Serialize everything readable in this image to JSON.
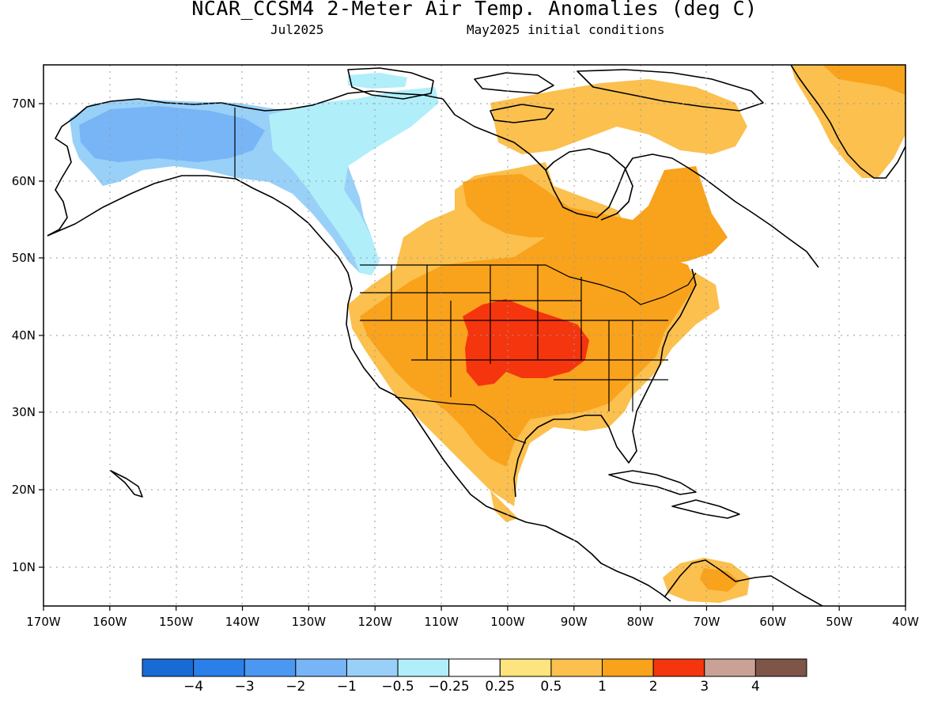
{
  "title": "NCAR_CCSM4 2-Meter Air Temp. Anomalies (deg C)",
  "subtitle_left": "Jul2025",
  "subtitle_right": "May2025 initial conditions",
  "lon_ticks": [
    "170W",
    "160W",
    "150W",
    "140W",
    "130W",
    "120W",
    "110W",
    "100W",
    "90W",
    "80W",
    "70W",
    "60W",
    "50W",
    "40W"
  ],
  "lat_ticks": [
    "70N",
    "60N",
    "50N",
    "40N",
    "30N",
    "20N",
    "10N"
  ],
  "colorbar": {
    "colors": [
      "#1a6ad6",
      "#2a7fe8",
      "#4b98f2",
      "#78b5f6",
      "#98d0f8",
      "#b0eefa",
      "#ffffff",
      "#fde47e",
      "#fbc04e",
      "#f9a21c",
      "#f5350e",
      "#c9a295",
      "#7f5548"
    ],
    "labels": [
      "−4",
      "−3",
      "−2",
      "−1",
      "−0.5",
      "−0.25",
      "0.25",
      "0.5",
      "1",
      "2",
      "3",
      "4"
    ]
  },
  "regions": [
    {
      "name": "alaska-cool-anomaly",
      "color": "#98d0f8"
    },
    {
      "name": "alaska-interior-cool-anomaly",
      "color": "#78b5f6"
    },
    {
      "name": "pacific-nw-slight-cool",
      "color": "#b0eefa"
    },
    {
      "name": "us-warm-anomaly",
      "color": "#fbc04e"
    },
    {
      "name": "central-us-warm-core",
      "color": "#f9a21c"
    },
    {
      "name": "plains-hot-spot",
      "color": "#f5350e"
    },
    {
      "name": "canada-east-warm-anomaly",
      "color": "#f9a21c"
    },
    {
      "name": "greenland-warm-anomaly",
      "color": "#fbc04e"
    },
    {
      "name": "venezuela-warm-anomaly",
      "color": "#fbc04e"
    }
  ]
}
